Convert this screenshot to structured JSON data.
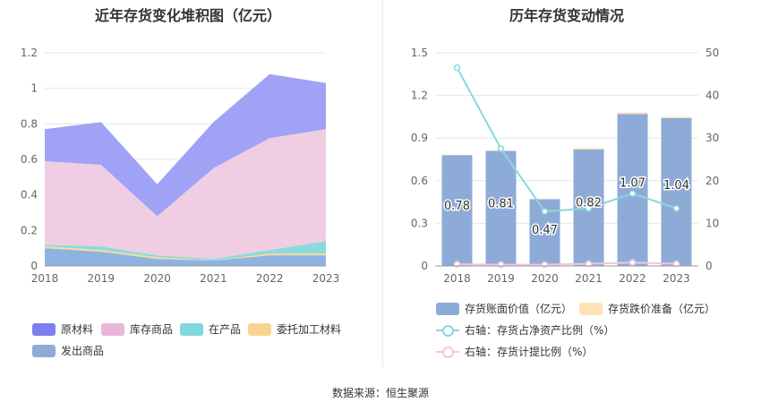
{
  "source_label": "数据来源：恒生聚源",
  "chart_data": [
    {
      "type": "area",
      "stacked": true,
      "title": "近年存货变化堆积图（亿元）",
      "categories": [
        "2018",
        "2019",
        "2020",
        "2021",
        "2022",
        "2023"
      ],
      "ylim": [
        0,
        1.2
      ],
      "yticks": [
        "0",
        "0.2",
        "0.4",
        "0.6",
        "0.8",
        "1",
        "1.2"
      ],
      "grid": true,
      "legend_position": "bottom",
      "series": [
        {
          "name": "发出商品",
          "color": "#8fb3e0",
          "values": [
            0.1,
            0.08,
            0.04,
            0.03,
            0.06,
            0.06
          ]
        },
        {
          "name": "委托加工材料",
          "color": "#fbd79a",
          "values": [
            0.01,
            0.01,
            0.01,
            0.0,
            0.01,
            0.01
          ]
        },
        {
          "name": "在产品",
          "color": "#8cdadc",
          "values": [
            0.01,
            0.02,
            0.01,
            0.01,
            0.02,
            0.07
          ]
        },
        {
          "name": "库存商品",
          "color": "#f0cde3",
          "values": [
            0.47,
            0.46,
            0.22,
            0.51,
            0.63,
            0.63
          ]
        },
        {
          "name": "原材料",
          "color": "#a0a2f5",
          "values": [
            0.18,
            0.24,
            0.18,
            0.26,
            0.36,
            0.26
          ]
        }
      ]
    },
    {
      "type": "bar",
      "title": "历年存货变动情况",
      "categories": [
        "2018",
        "2019",
        "2020",
        "2021",
        "2022",
        "2023"
      ],
      "ylim": [
        0,
        1.5
      ],
      "yticks": [
        "0",
        "0.3",
        "0.6",
        "0.9",
        "1.2",
        "1.5"
      ],
      "y2lim": [
        0,
        50
      ],
      "y2ticks": [
        "0",
        "10",
        "20",
        "30",
        "40",
        "50"
      ],
      "grid": true,
      "legend_position": "bottom",
      "bar_series": [
        {
          "name": "存货账面价值（亿元）",
          "color": "#8eabd8",
          "values": [
            0.78,
            0.81,
            0.47,
            0.82,
            1.07,
            1.04
          ],
          "labels": [
            "0.78",
            "0.81",
            "0.47",
            "0.82",
            "1.07",
            "1.04"
          ]
        },
        {
          "name": "存货跌价准备（亿元）",
          "color": "#fde3b6",
          "values": [
            0.0,
            0.0,
            0.0,
            0.01,
            0.01,
            0.01
          ]
        }
      ],
      "line_series": [
        {
          "name": "右轴：存货占净资产比例（%）",
          "color": "#88d8de",
          "values": [
            46.5,
            27.5,
            12.8,
            13.5,
            17.0,
            13.5
          ]
        },
        {
          "name": "右轴：存货计提比例（%）",
          "color": "#f3c6dc",
          "values": [
            0.4,
            0.3,
            0.3,
            0.5,
            0.8,
            0.5
          ]
        }
      ]
    }
  ]
}
